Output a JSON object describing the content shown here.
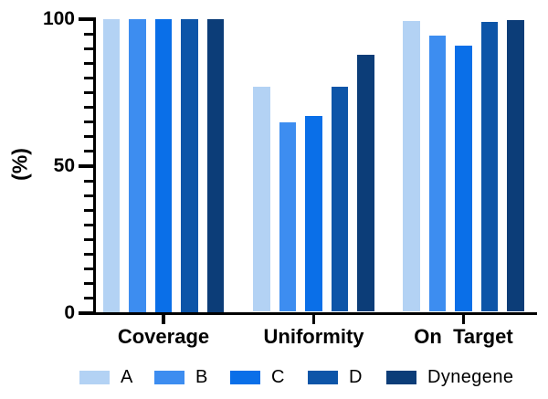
{
  "chart_data": {
    "type": "bar",
    "title": "",
    "ylabel": "(%)",
    "xlabel": "",
    "categories": [
      "Coverage",
      "Uniformity",
      "On  Target"
    ],
    "series": [
      {
        "name": "A",
        "color": "#B3D2F4",
        "values": [
          100,
          77,
          99.3
        ]
      },
      {
        "name": "B",
        "color": "#3D8DF0",
        "values": [
          100,
          65,
          94.3
        ]
      },
      {
        "name": "C",
        "color": "#0A6FE8",
        "values": [
          100,
          67,
          91.0
        ]
      },
      {
        "name": "D",
        "color": "#0D55A8",
        "values": [
          100,
          77,
          99.0
        ]
      },
      {
        "name": "Dynegene",
        "color": "#0C3D78",
        "values": [
          100,
          88,
          99.8
        ]
      }
    ],
    "ylim": [
      0,
      100
    ],
    "yticks": [
      0,
      50,
      100
    ],
    "minor_tick_step": 5,
    "grid": false,
    "legend_position": "bottom",
    "axis_color": "#000000",
    "text_color": "#000000"
  }
}
